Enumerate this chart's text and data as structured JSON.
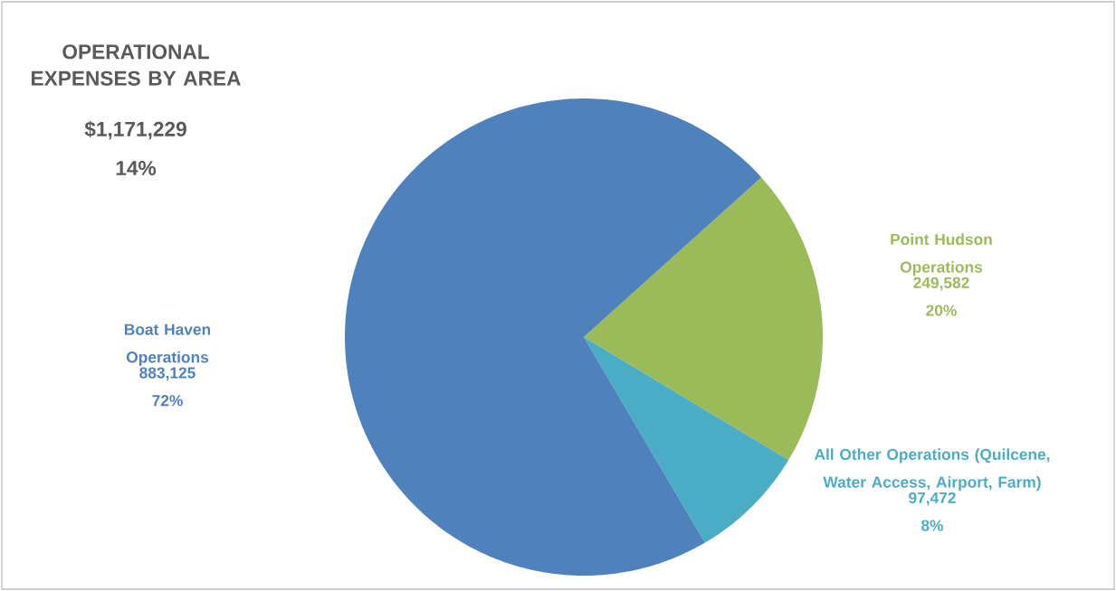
{
  "chart_data": {
    "type": "pie",
    "title": "OPERATIONAL EXPENSES BY AREA",
    "subtitle": "$1,171,229",
    "annotations": [
      "14%"
    ],
    "categories": [
      "Point Hudson Operations",
      "All Other Operations (Quilcene, Water Access, Airport, Farm)",
      "Boat Haven Operations"
    ],
    "values": [
      249582,
      97472,
      883125
    ],
    "value_labels": [
      "249,582 20%",
      "97,472 8%",
      "883,125 72%"
    ],
    "colors": [
      "#9bbb59",
      "#4bacc6",
      "#4f81bd"
    ]
  }
}
